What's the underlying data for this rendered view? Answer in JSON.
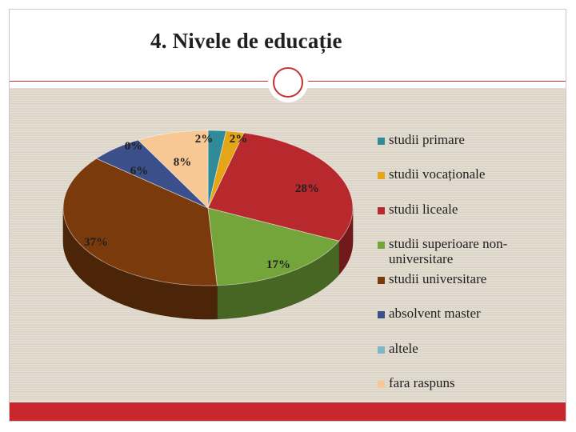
{
  "slide": {
    "title": "4. Nivele de educație"
  },
  "colors": {
    "accent": "#c8282d",
    "panel": "#ddd6c8"
  },
  "chart_data": {
    "type": "pie",
    "style": "3d",
    "legend_position": "right",
    "slices": [
      {
        "label": "studii primare",
        "value": 2,
        "color": "#2f8a99",
        "pct_label": "2%"
      },
      {
        "label": "studii vocaționale",
        "value": 2,
        "color": "#e4a517",
        "pct_label": "2%"
      },
      {
        "label": "studii liceale",
        "value": 28,
        "color": "#b8292d",
        "pct_label": "28%"
      },
      {
        "label": "studii superioare non-universitare",
        "value": 17,
        "color": "#73a53a",
        "pct_label": "17%"
      },
      {
        "label": "studii universitare",
        "value": 37,
        "color": "#7b3a0b",
        "pct_label": "37%"
      },
      {
        "label": "absolvent master",
        "value": 6,
        "color": "#3b4f8a",
        "pct_label": "6%"
      },
      {
        "label": "altele",
        "value": 0,
        "color": "#7fb6c9",
        "pct_label": "0%"
      },
      {
        "label": "fara raspuns",
        "value": 8,
        "color": "#f8c894",
        "pct_label": "8%"
      }
    ]
  }
}
